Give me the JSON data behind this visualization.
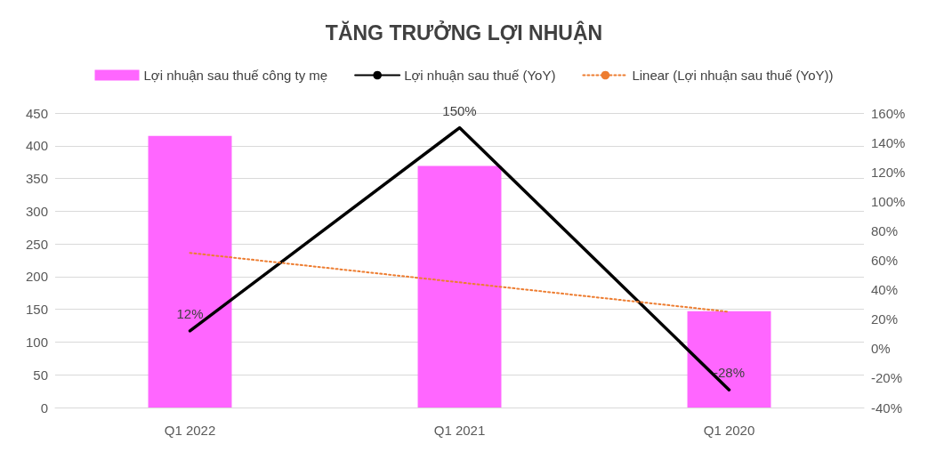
{
  "chart_data": {
    "type": "bar",
    "title": "TĂNG TRƯỞNG LỢI NHUẬN",
    "categories": [
      "Q1 2022",
      "Q1 2021",
      "Q1 2020"
    ],
    "series": [
      {
        "name": "Lợi nhuận sau thuế công ty mẹ",
        "color": "#ff66ff",
        "values": [
          415,
          369,
          147
        ]
      },
      {
        "name": "Lợi nhuận sau thuế (YoY)",
        "type": "line",
        "axis": "y2",
        "color": "#000000",
        "values": [
          12,
          150,
          -28
        ],
        "value_labels": [
          "12%",
          "150%",
          "-28%"
        ]
      },
      {
        "name": "Linear (Lợi nhuận sau thuế (YoY))",
        "type": "line",
        "axis": "y2",
        "color": "#ed7d31",
        "line_style": "dotted",
        "values": [
          65,
          45,
          25
        ]
      }
    ],
    "ylim": [
      0,
      450
    ],
    "yticks": [
      0,
      50,
      100,
      150,
      200,
      250,
      300,
      350,
      400,
      450
    ],
    "y2lim": [
      -40,
      160
    ],
    "y2ticks": [
      {
        "value": -40,
        "label": "-40%"
      },
      {
        "value": -20,
        "label": "-20%"
      },
      {
        "value": 0,
        "label": "0%"
      },
      {
        "value": 20,
        "label": "20%"
      },
      {
        "value": 40,
        "label": "40%"
      },
      {
        "value": 60,
        "label": "60%"
      },
      {
        "value": 80,
        "label": "80%"
      },
      {
        "value": 100,
        "label": "100%"
      },
      {
        "value": 120,
        "label": "120%"
      },
      {
        "value": 140,
        "label": "140%"
      },
      {
        "value": 160,
        "label": "160%"
      }
    ],
    "grid": "y",
    "legend": "top",
    "marker": "none"
  }
}
